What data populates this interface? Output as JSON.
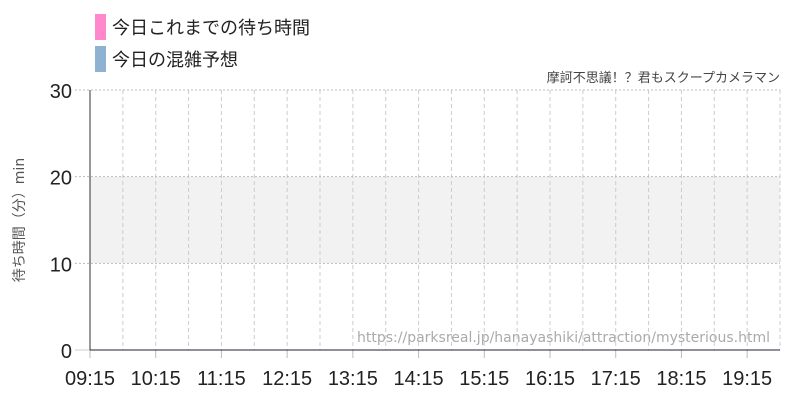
{
  "chart_data": {
    "type": "line",
    "title": "摩訶不思議！？君もスクープカメラマン",
    "ylabel": "待ち時間（分）min",
    "xlabel": "",
    "ylim": [
      0,
      30
    ],
    "yticks": [
      "0",
      "10",
      "20",
      "30"
    ],
    "xticks": [
      "09:15",
      "10:15",
      "11:15",
      "12:15",
      "13:15",
      "14:15",
      "15:15",
      "16:15",
      "17:15",
      "18:15",
      "19:15"
    ],
    "xlim": [
      "09:15",
      "19:45"
    ],
    "shaded_band": [
      10,
      20
    ],
    "grid": true,
    "legend_placement": "top-left",
    "series": [
      {
        "name": "今日これまでの待ち時間",
        "color": "#ff88cc",
        "values": []
      },
      {
        "name": "今日の混雑予想",
        "color": "#8eb2d0",
        "values": []
      }
    ],
    "watermark": "https://parksreal.jp/hanayashiki/attraction/mysterious.html"
  }
}
